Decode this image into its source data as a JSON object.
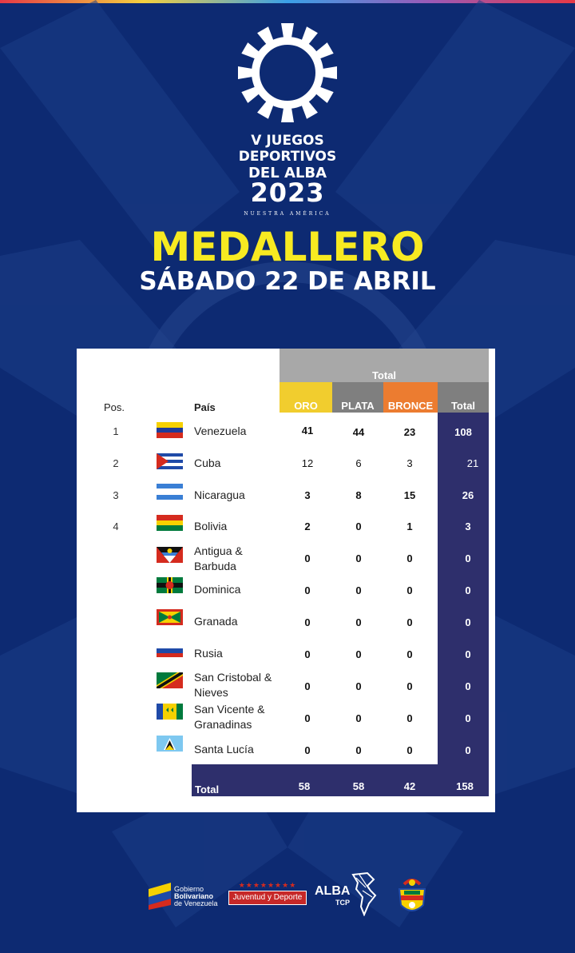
{
  "event": {
    "line1": "V JUEGOS",
    "line2": "DEPORTIVOS",
    "line3": "DEL ALBA",
    "year": "2023",
    "tagline": "NUESTRA AMÉRICA"
  },
  "heading": {
    "title": "MEDALLERO",
    "date": "SÁBADO 22 DE ABRIL"
  },
  "table": {
    "group_header": "Total",
    "columns": {
      "pos": "Pos.",
      "country": "País",
      "gold": "ORO",
      "silver": "PLATA",
      "bronze": "BRONCE",
      "total": "Total"
    },
    "colors": {
      "gold": "#f1cd2e",
      "silver": "#7f7f7f",
      "bronze": "#ec7c30",
      "total": "#7f7f7f",
      "total_column": "#2e2f6c"
    },
    "rows": [
      {
        "pos": "1",
        "country": "Venezuela",
        "gold": "41",
        "silver": "44",
        "bronze": "23",
        "total": "108"
      },
      {
        "pos": "2",
        "country": "Cuba",
        "gold": "12",
        "silver": "6",
        "bronze": "3",
        "total": "21"
      },
      {
        "pos": "3",
        "country": "Nicaragua",
        "gold": "3",
        "silver": "8",
        "bronze": "15",
        "total": "26"
      },
      {
        "pos": "4",
        "country": "Bolivia",
        "gold": "2",
        "silver": "0",
        "bronze": "1",
        "total": "3"
      },
      {
        "pos": "",
        "country": "Antigua & Barbuda",
        "gold": "0",
        "silver": "0",
        "bronze": "0",
        "total": "0"
      },
      {
        "pos": "",
        "country": "Dominica",
        "gold": "0",
        "silver": "0",
        "bronze": "0",
        "total": "0"
      },
      {
        "pos": "",
        "country": "Granada",
        "gold": "0",
        "silver": "0",
        "bronze": "0",
        "total": "0"
      },
      {
        "pos": "",
        "country": "Rusia",
        "gold": "0",
        "silver": "0",
        "bronze": "0",
        "total": "0"
      },
      {
        "pos": "",
        "country": "San Cristobal & Nieves",
        "gold": "0",
        "silver": "0",
        "bronze": "0",
        "total": "0"
      },
      {
        "pos": "",
        "country": "San Vicente & Granadinas",
        "gold": "0",
        "silver": "0",
        "bronze": "0",
        "total": "0"
      },
      {
        "pos": "",
        "country": "Santa Lucía",
        "gold": "0",
        "silver": "0",
        "bronze": "0",
        "total": "0"
      }
    ],
    "totals": {
      "label": "Total",
      "gold": "58",
      "silver": "58",
      "bronze": "42",
      "total": "158"
    }
  },
  "footer": {
    "gov_line1": "Gobierno",
    "gov_line2": "Bolivariano",
    "gov_line3": "de Venezuela",
    "ministry": "Juventud y Deporte",
    "alba": "ALBA",
    "alba_sub": "TCP"
  }
}
